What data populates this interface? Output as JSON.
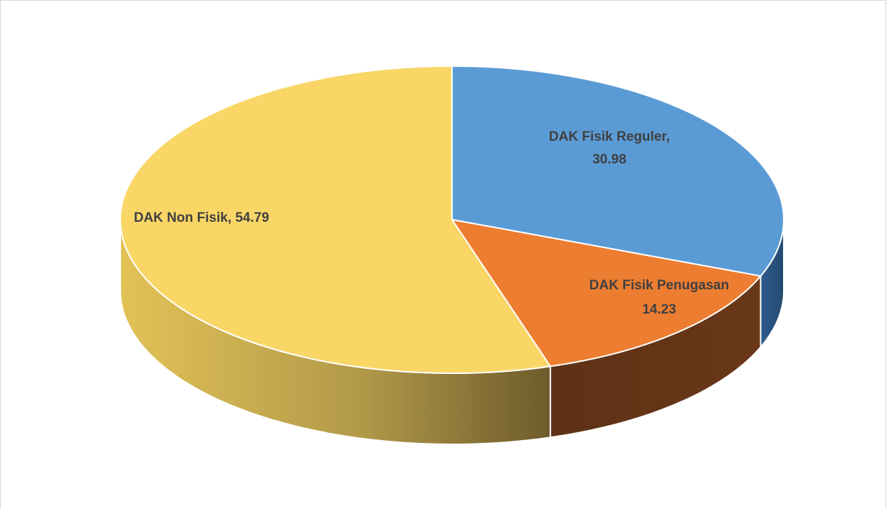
{
  "chart_data": {
    "type": "pie",
    "style": "3d",
    "title": "",
    "legend": "none",
    "start": "top, clockwise",
    "slices": [
      {
        "label": "DAK Fisik Reguler",
        "value": 30.98,
        "color": "#5B9BD5",
        "side_color": "#2E5A8A",
        "label_lines": [
          "DAK Fisik Reguler,",
          "30.98"
        ]
      },
      {
        "label": "DAK Fisik Penugasan",
        "value": 14.23,
        "color": "#ED7D31",
        "side_color": "#633114",
        "label_lines": [
          "DAK Fisik Penugasan",
          "14.23"
        ]
      },
      {
        "label": "DAK Non Fisik",
        "value": 54.79,
        "color": "#F9D666",
        "side_color": "#C4A343",
        "label_lines": [
          "DAK Non Fisik, 54.79"
        ]
      }
    ]
  }
}
